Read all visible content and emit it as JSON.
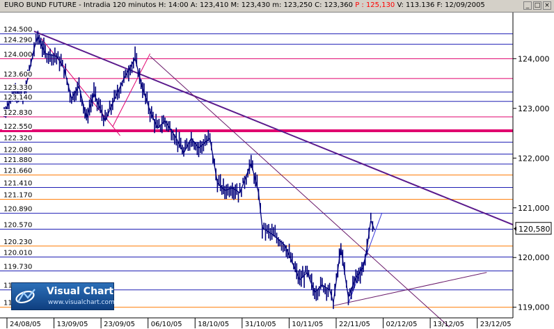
{
  "header": {
    "symbol": "EURO BUND FUTURE",
    "interval": "Intradia 120 minutos",
    "fields": [
      {
        "text": "H: 14:00",
        "color": "#000000"
      },
      {
        "text": "A: 123,410",
        "color": "#000000"
      },
      {
        "text": "M: 123,430",
        "color": "#000000"
      },
      {
        "text": "m: 123,250",
        "color": "#000000"
      },
      {
        "text": "C: 123,360",
        "color": "#000000"
      },
      {
        "text": "P : 125,130",
        "color": "#ff0000"
      },
      {
        "text": "V: 113.136",
        "color": "#000000"
      },
      {
        "text": "F: 12/09/2005",
        "color": "#000000"
      }
    ],
    "window_buttons": [
      "_",
      "□",
      "×"
    ]
  },
  "logo": {
    "name": "Visual Chart",
    "url": "www.visualchart.com"
  },
  "colors": {
    "price": "#00007a",
    "level_blue": "#1e1eb4",
    "level_magenta": "#e0006e",
    "level_orange": "#ff7a00",
    "trend_main": "#5a1a8c",
    "trend_thin": "#6a1a6a",
    "trend_up": "#3a3adc",
    "fan": "#e0006e"
  },
  "chart_data": {
    "type": "candlestick",
    "title": "EURO BUND FUTURE - Intradia 120 minutos",
    "x_axis": {
      "labels": [
        "24/08/05",
        "13/09/05",
        "23/09/05",
        "06/10/05",
        "18/10/05",
        "31/10/05",
        "10/11/05",
        "22/11/05",
        "02/12/05",
        "13/12/05",
        "23/12/05"
      ],
      "range": [
        "2005-08-17",
        "2005-12-31"
      ]
    },
    "y_axis": {
      "range": [
        118.8,
        124.9
      ],
      "ticks": [
        124.0,
        123.0,
        122.0,
        121.0,
        120.0,
        119.0
      ],
      "tick_labels": [
        "124,000",
        "123,000",
        "122,000",
        "121,000",
        "120,000",
        "119,000"
      ],
      "current_label": "120,580",
      "current_value": 120.58
    },
    "grid": false,
    "levels": [
      {
        "value": 124.5,
        "label": "124.500",
        "color": "blue",
        "thick": false
      },
      {
        "value": 124.29,
        "label": "124.290",
        "color": "blue",
        "thick": false
      },
      {
        "value": 124.0,
        "label": "124.000",
        "color": "magenta",
        "thick": false
      },
      {
        "value": 123.6,
        "label": "123.600",
        "color": "magenta",
        "thick": false
      },
      {
        "value": 123.33,
        "label": "123.330",
        "color": "blue",
        "thick": false
      },
      {
        "value": 123.14,
        "label": "123.140",
        "color": "blue",
        "thick": false
      },
      {
        "value": 122.83,
        "label": "122.830",
        "color": "magenta",
        "thick": false
      },
      {
        "value": 122.55,
        "label": "122.550",
        "color": "magenta",
        "thick": true
      },
      {
        "value": 122.32,
        "label": "122.320",
        "color": "blue",
        "thick": false
      },
      {
        "value": 122.08,
        "label": "122.080",
        "color": "blue",
        "thick": false
      },
      {
        "value": 121.88,
        "label": "121.880",
        "color": "blue",
        "thick": false
      },
      {
        "value": 121.66,
        "label": "121.660",
        "color": "orange",
        "thick": false
      },
      {
        "value": 121.41,
        "label": "121.410",
        "color": "blue",
        "thick": false
      },
      {
        "value": 121.17,
        "label": "121.170",
        "color": "orange",
        "thick": false
      },
      {
        "value": 120.89,
        "label": "120.890",
        "color": "blue",
        "thick": false
      },
      {
        "value": 120.57,
        "label": "120.570",
        "color": "blue",
        "thick": false
      },
      {
        "value": 120.23,
        "label": "120.230",
        "color": "orange",
        "thick": false
      },
      {
        "value": 120.01,
        "label": "120.010",
        "color": "blue",
        "thick": false
      },
      {
        "value": 119.73,
        "label": "119.730",
        "color": "blue",
        "thick": false
      },
      {
        "value": 119.35,
        "label": "119.350",
        "color": "blue",
        "thick": false
      },
      {
        "value": 119.0,
        "label": "119.000",
        "color": "orange",
        "thick": false
      }
    ],
    "trendlines": [
      {
        "name": "main-downtrend",
        "color": "main",
        "width": 2,
        "points": [
          [
            "2005-08-25",
            124.55
          ],
          [
            "2005-12-31",
            120.66
          ]
        ]
      },
      {
        "name": "secondary-downtrend",
        "color": "thin",
        "width": 1,
        "points": [
          [
            "2005-09-25",
            124.05
          ],
          [
            "2005-12-14",
            118.6
          ]
        ]
      },
      {
        "name": "bottom-support",
        "color": "thin",
        "width": 1,
        "points": [
          [
            "2005-11-13",
            119.03
          ],
          [
            "2005-12-24",
            119.7
          ]
        ]
      },
      {
        "name": "rally-support",
        "color": "up",
        "width": 1,
        "points": [
          [
            "2005-11-17",
            119.07
          ],
          [
            "2005-11-26",
            120.9
          ]
        ]
      },
      {
        "name": "fan-up",
        "color": "fan",
        "width": 1,
        "points": [
          [
            "2005-09-15",
            122.63
          ],
          [
            "2005-09-25",
            124.1
          ]
        ]
      },
      {
        "name": "fan-down",
        "color": "fan",
        "width": 1,
        "points": [
          [
            "2005-08-27",
            124.4
          ],
          [
            "2005-09-17",
            122.45
          ]
        ]
      }
    ],
    "price_path": [
      [
        "2005-08-17",
        122.9
      ],
      [
        "2005-08-20",
        123.4
      ],
      [
        "2005-08-22",
        123.15
      ],
      [
        "2005-08-25",
        124.2
      ],
      [
        "2005-08-26",
        124.45
      ],
      [
        "2005-08-28",
        124.1
      ],
      [
        "2005-08-31",
        124.05
      ],
      [
        "2005-09-02",
        123.8
      ],
      [
        "2005-09-04",
        123.2
      ],
      [
        "2005-09-06",
        123.45
      ],
      [
        "2005-09-08",
        122.8
      ],
      [
        "2005-09-10",
        123.3
      ],
      [
        "2005-09-13",
        122.75
      ],
      [
        "2005-09-15",
        123.1
      ],
      [
        "2005-09-18",
        123.6
      ],
      [
        "2005-09-21",
        124.0
      ],
      [
        "2005-09-23",
        123.4
      ],
      [
        "2005-09-25",
        122.95
      ],
      [
        "2005-09-27",
        122.6
      ],
      [
        "2005-09-29",
        122.75
      ],
      [
        "2005-10-02",
        122.4
      ],
      [
        "2005-10-04",
        122.1
      ],
      [
        "2005-10-06",
        122.4
      ],
      [
        "2005-10-08",
        122.2
      ],
      [
        "2005-10-11",
        122.4
      ],
      [
        "2005-10-13",
        121.5
      ],
      [
        "2005-10-15",
        121.35
      ],
      [
        "2005-10-17",
        121.4
      ],
      [
        "2005-10-19",
        121.3
      ],
      [
        "2005-10-22",
        121.9
      ],
      [
        "2005-10-24",
        121.3
      ],
      [
        "2005-10-25",
        120.6
      ],
      [
        "2005-10-28",
        120.45
      ],
      [
        "2005-10-31",
        120.25
      ],
      [
        "2005-11-02",
        119.9
      ],
      [
        "2005-11-04",
        119.55
      ],
      [
        "2005-11-06",
        119.7
      ],
      [
        "2005-11-08",
        119.3
      ],
      [
        "2005-11-10",
        119.45
      ],
      [
        "2005-11-12",
        119.35
      ],
      [
        "2005-11-13",
        119.1
      ],
      [
        "2005-11-15",
        120.2
      ],
      [
        "2005-11-16",
        119.7
      ],
      [
        "2005-11-17",
        119.2
      ],
      [
        "2005-11-19",
        119.6
      ],
      [
        "2005-11-21",
        119.8
      ],
      [
        "2005-11-22",
        120.2
      ],
      [
        "2005-11-23",
        120.75
      ],
      [
        "2005-11-24",
        120.55
      ]
    ]
  }
}
